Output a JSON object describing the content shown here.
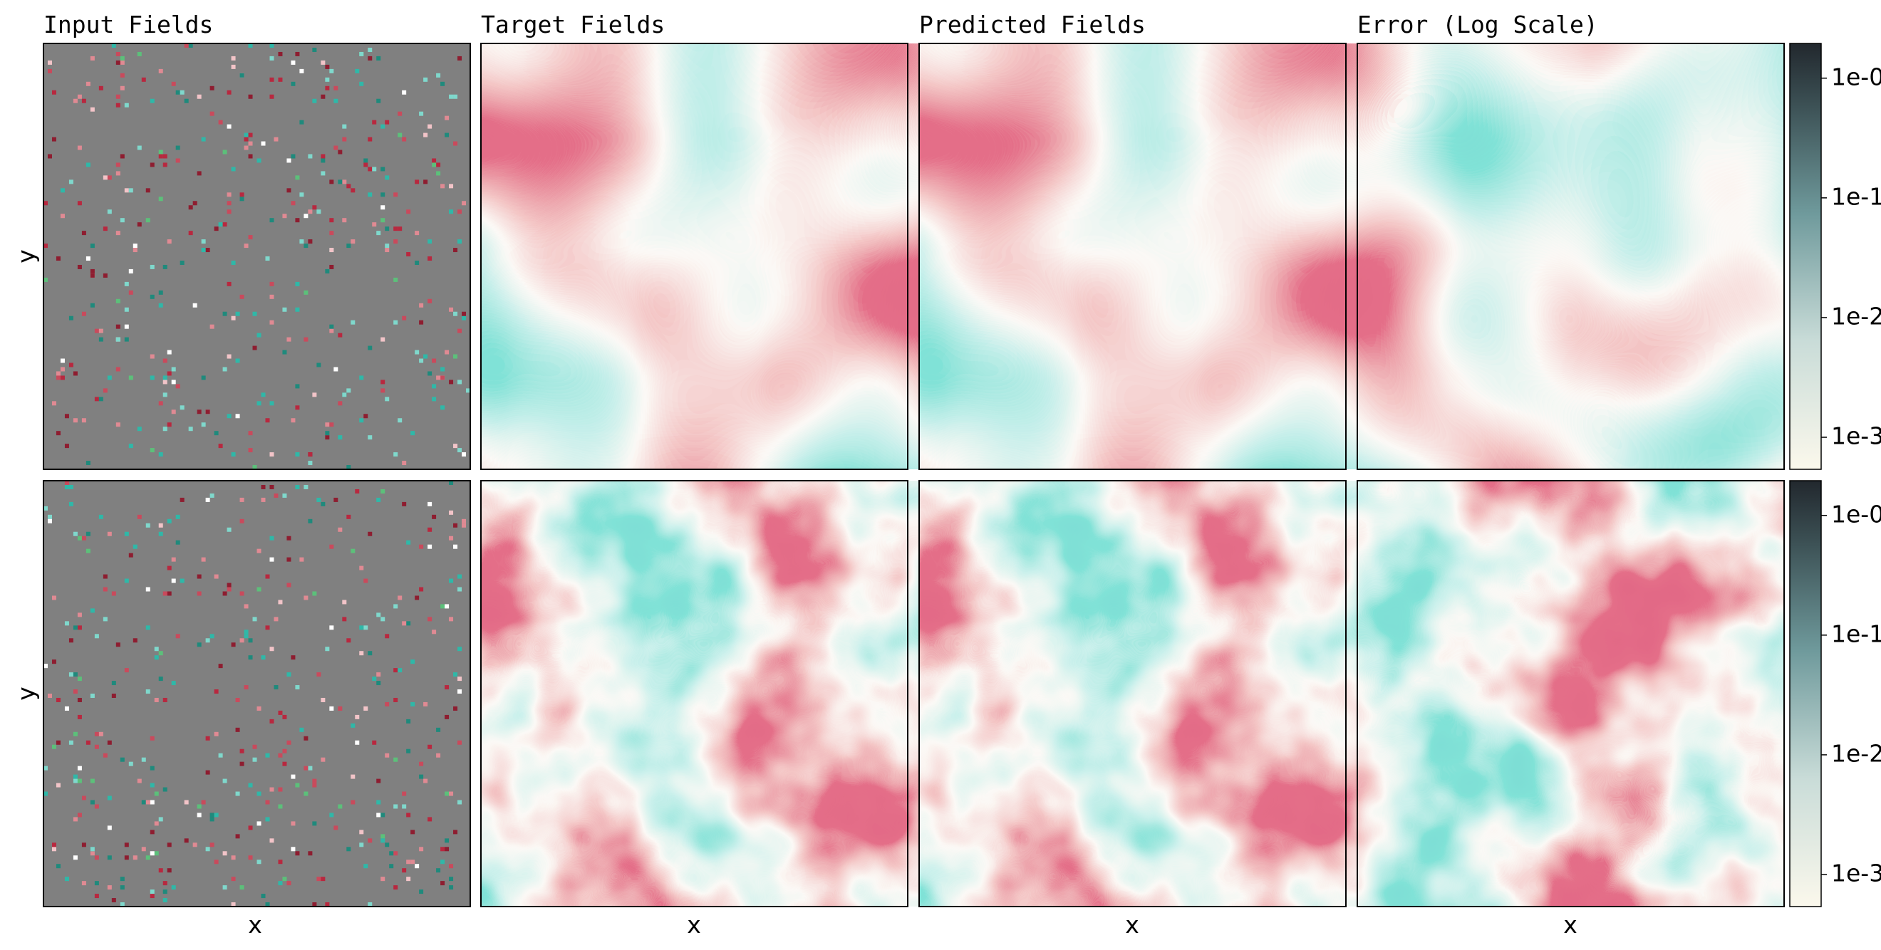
{
  "chart_data": {
    "type": "heatmap",
    "panel_titles": [
      "Input Fields",
      "Target Fields",
      "Predicted Fields",
      "Error (Log Scale)"
    ],
    "x_labels": [
      "x",
      "x",
      "x",
      "x"
    ],
    "y_labels": [
      "y",
      "y"
    ],
    "colorbars": [
      {
        "scale": "log",
        "lim": [
          0.00054,
          1.95
        ],
        "ticks": [
          {
            "value": 1,
            "label": "1e-0"
          },
          {
            "value": 0.1,
            "label": "1e-1"
          },
          {
            "value": 0.01,
            "label": "1e-2"
          },
          {
            "value": 0.001,
            "label": "1e-3"
          }
        ]
      },
      {
        "scale": "log",
        "lim": [
          0.00054,
          1.95
        ],
        "ticks": [
          {
            "value": 1,
            "label": "1e-0"
          },
          {
            "value": 0.1,
            "label": "1e-1"
          },
          {
            "value": 0.01,
            "label": "1e-2"
          },
          {
            "value": 0.001,
            "label": "1e-3"
          }
        ]
      }
    ]
  }
}
